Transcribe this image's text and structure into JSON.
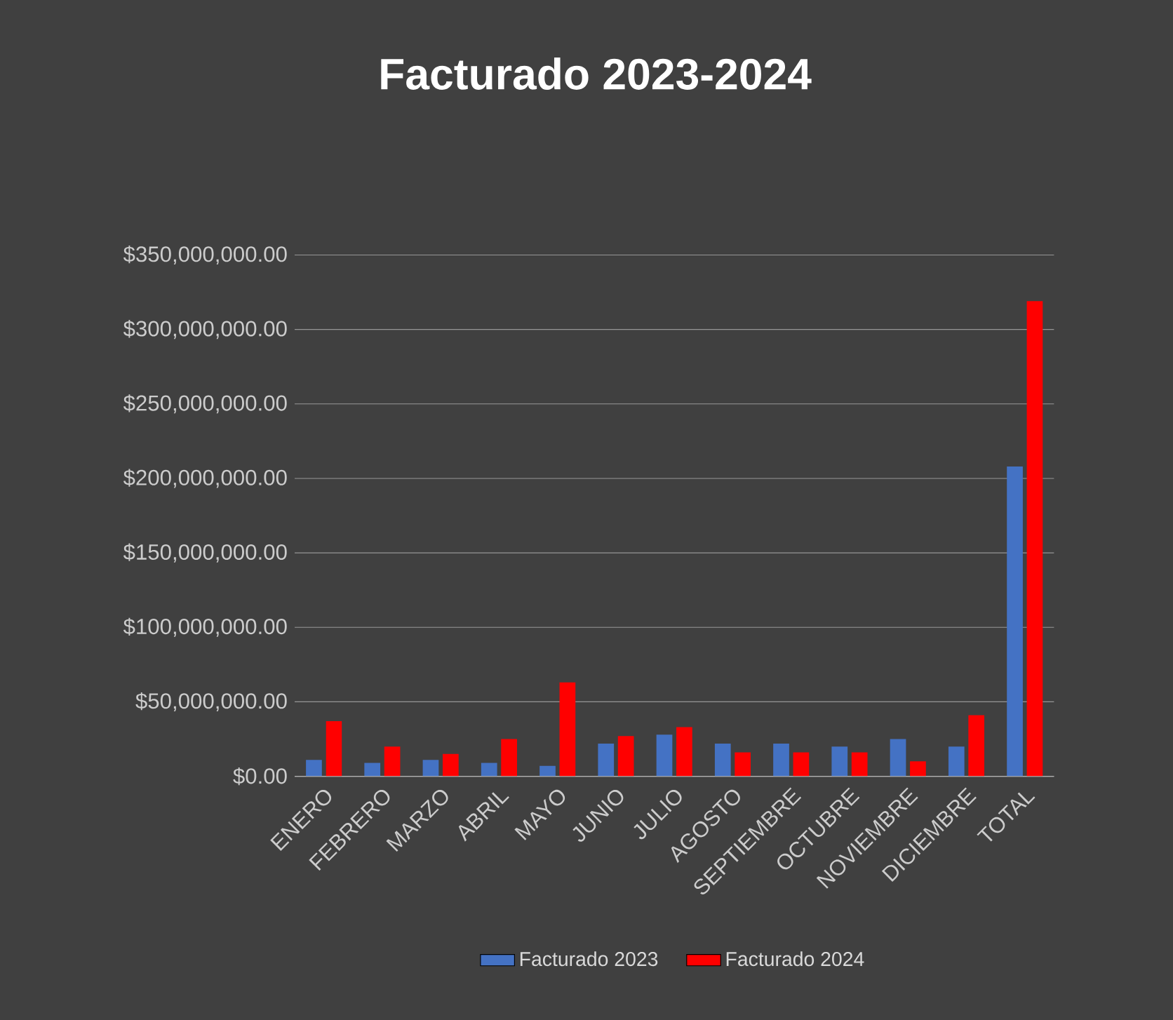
{
  "chart_data": {
    "type": "bar",
    "title": "Facturado  2023-2024",
    "categories": [
      "ENERO",
      "FEBRERO",
      "MARZO",
      "ABRIL",
      "MAYO",
      "JUNIO",
      "JULIO",
      "AGOSTO",
      "SEPTIEMBRE",
      "OCTUBRE",
      "NOVIEMBRE",
      "DICIEMBRE",
      "TOTAL"
    ],
    "series": [
      {
        "name": "Facturado 2023",
        "color": "#4472c4",
        "values": [
          11000000,
          9000000,
          11000000,
          9000000,
          7000000,
          22000000,
          28000000,
          22000000,
          22000000,
          20000000,
          25000000,
          20000000,
          208000000
        ]
      },
      {
        "name": "Facturado 2024",
        "color": "#ff0000",
        "values": [
          37000000,
          20000000,
          15000000,
          25000000,
          63000000,
          27000000,
          33000000,
          16000000,
          16000000,
          16000000,
          10000000,
          41000000,
          319000000
        ]
      }
    ],
    "ylim": [
      0,
      350000000
    ],
    "yticks": [
      {
        "value": 0,
        "label": "$0.00"
      },
      {
        "value": 50000000,
        "label": "$50,000,000.00"
      },
      {
        "value": 100000000,
        "label": "$100,000,000.00"
      },
      {
        "value": 150000000,
        "label": "$150,000,000.00"
      },
      {
        "value": 200000000,
        "label": "$200,000,000.00"
      },
      {
        "value": 250000000,
        "label": "$250,000,000.00"
      },
      {
        "value": 300000000,
        "label": "$300,000,000.00"
      },
      {
        "value": 350000000,
        "label": "$350,000,000.00"
      }
    ],
    "grid": "y",
    "legend": "bottom"
  }
}
